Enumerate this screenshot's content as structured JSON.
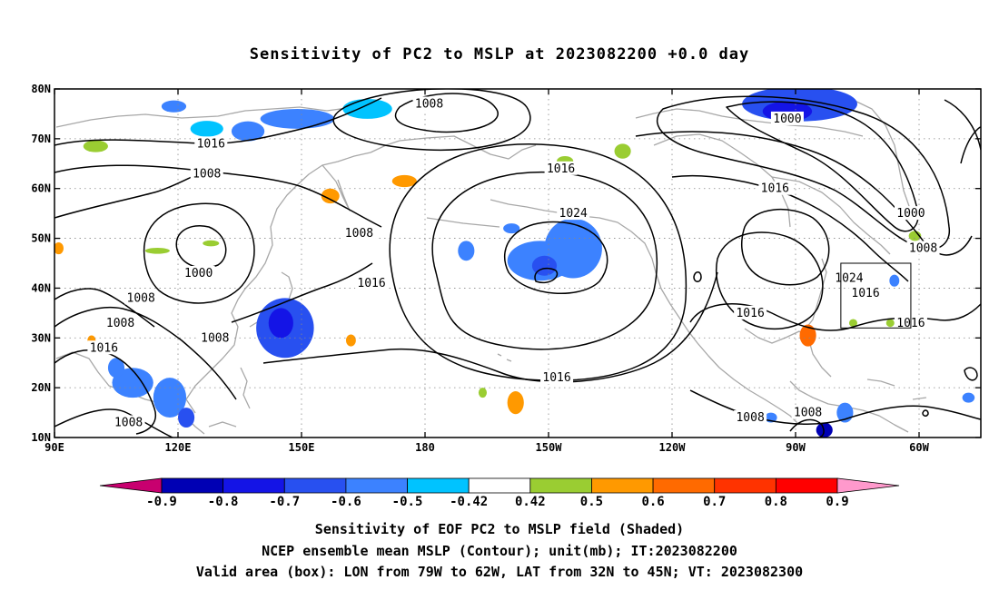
{
  "title": "Sensitivity of PC2 to MSLP at 2023082200 +0.0 day",
  "map": {
    "lon_ticks": [
      {
        "lon": 90,
        "label": "90E"
      },
      {
        "lon": 120,
        "label": "120E"
      },
      {
        "lon": 150,
        "label": "150E"
      },
      {
        "lon": 180,
        "label": "180"
      },
      {
        "lon": 210,
        "label": "150W"
      },
      {
        "lon": 240,
        "label": "120W"
      },
      {
        "lon": 270,
        "label": "90W"
      },
      {
        "lon": 300,
        "label": "60W"
      }
    ],
    "lat_ticks": [
      {
        "lat": 80,
        "label": "80N"
      },
      {
        "lat": 70,
        "label": "70N"
      },
      {
        "lat": 60,
        "label": "60N"
      },
      {
        "lat": 50,
        "label": "50N"
      },
      {
        "lat": 40,
        "label": "40N"
      },
      {
        "lat": 30,
        "label": "30N"
      },
      {
        "lat": 20,
        "label": "20N"
      },
      {
        "lat": 10,
        "label": "10N"
      }
    ],
    "lon_range": [
      90,
      315
    ],
    "lat_range": [
      10,
      80
    ],
    "grid": "dotted",
    "valid_box": {
      "lon_min": 281,
      "lon_max": 298,
      "lat_min": 32,
      "lat_max": 45
    },
    "contour_labels": [
      {
        "text": "1008",
        "lon": 181,
        "lat": 77
      },
      {
        "text": "1000",
        "lon": 268,
        "lat": 74
      },
      {
        "text": "1016",
        "lon": 128,
        "lat": 69
      },
      {
        "text": "1008",
        "lon": 127,
        "lat": 63
      },
      {
        "text": "1016",
        "lon": 213,
        "lat": 64
      },
      {
        "text": "1016",
        "lon": 265,
        "lat": 60
      },
      {
        "text": "1024",
        "lon": 216,
        "lat": 55
      },
      {
        "text": "1008",
        "lon": 164,
        "lat": 51
      },
      {
        "text": "1000",
        "lon": 298,
        "lat": 55
      },
      {
        "text": "1008",
        "lon": 301,
        "lat": 48
      },
      {
        "text": "1000",
        "lon": 125,
        "lat": 43
      },
      {
        "text": "1024",
        "lon": 283,
        "lat": 42
      },
      {
        "text": "1016",
        "lon": 167,
        "lat": 41
      },
      {
        "text": "1016",
        "lon": 287,
        "lat": 39
      },
      {
        "text": "1008",
        "lon": 111,
        "lat": 38
      },
      {
        "text": "1016",
        "lon": 259,
        "lat": 35
      },
      {
        "text": "1008",
        "lon": 106,
        "lat": 33
      },
      {
        "text": "1016",
        "lon": 298,
        "lat": 33
      },
      {
        "text": "1008",
        "lon": 129,
        "lat": 30
      },
      {
        "text": "1016",
        "lon": 102,
        "lat": 28
      },
      {
        "text": "1016",
        "lon": 212,
        "lat": 22
      },
      {
        "text": "1008",
        "lon": 108,
        "lat": 13
      },
      {
        "text": "1008",
        "lon": 259,
        "lat": 14
      },
      {
        "text": "1008",
        "lon": 273,
        "lat": 15
      }
    ],
    "sensitivity_patches": [
      {
        "lon": 146,
        "lat": 32,
        "rx": 7,
        "ry": 6,
        "value": -0.6
      },
      {
        "lon": 145,
        "lat": 33,
        "rx": 3,
        "ry": 3,
        "value": -0.7
      },
      {
        "lon": 137,
        "lat": 71.5,
        "rx": 4,
        "ry": 2,
        "value": -0.5
      },
      {
        "lon": 149,
        "lat": 74,
        "rx": 9,
        "ry": 2,
        "value": -0.5
      },
      {
        "lon": 166,
        "lat": 76,
        "rx": 6,
        "ry": 2,
        "value": -0.42
      },
      {
        "lon": 127,
        "lat": 72,
        "rx": 4,
        "ry": 1.6,
        "value": -0.42
      },
      {
        "lon": 119,
        "lat": 76.5,
        "rx": 3,
        "ry": 1.2,
        "value": -0.5
      },
      {
        "lon": 208,
        "lat": 45.5,
        "rx": 8,
        "ry": 4,
        "value": -0.5
      },
      {
        "lon": 216,
        "lat": 48,
        "rx": 7,
        "ry": 6,
        "value": -0.5
      },
      {
        "lon": 209,
        "lat": 44.5,
        "rx": 3,
        "ry": 2,
        "value": -0.6
      },
      {
        "lon": 190,
        "lat": 47.5,
        "rx": 2,
        "ry": 2,
        "value": -0.5
      },
      {
        "lon": 201,
        "lat": 52,
        "rx": 2,
        "ry": 1,
        "value": -0.5
      },
      {
        "lon": 271,
        "lat": 77,
        "rx": 14,
        "ry": 3.5,
        "value": -0.6
      },
      {
        "lon": 268,
        "lat": 75.5,
        "rx": 6,
        "ry": 2,
        "value": -0.7
      },
      {
        "lon": 109,
        "lat": 21,
        "rx": 5,
        "ry": 3,
        "value": -0.5
      },
      {
        "lon": 118,
        "lat": 18,
        "rx": 4,
        "ry": 4,
        "value": -0.5
      },
      {
        "lon": 122,
        "lat": 14,
        "rx": 2,
        "ry": 2,
        "value": -0.6
      },
      {
        "lon": 105,
        "lat": 24,
        "rx": 2,
        "ry": 2,
        "value": -0.5
      },
      {
        "lon": 294,
        "lat": 41.5,
        "rx": 1.2,
        "ry": 1.2,
        "value": -0.5
      },
      {
        "lon": 277,
        "lat": 11.5,
        "rx": 2,
        "ry": 1.5,
        "value": -0.8
      },
      {
        "lon": 282,
        "lat": 15,
        "rx": 2,
        "ry": 2,
        "value": -0.5
      },
      {
        "lon": 264,
        "lat": 14,
        "rx": 1.5,
        "ry": 1,
        "value": -0.5
      },
      {
        "lon": 312,
        "lat": 18,
        "rx": 1.5,
        "ry": 1,
        "value": -0.5
      },
      {
        "lon": 157,
        "lat": 58.5,
        "rx": 2.2,
        "ry": 1.5,
        "value": 0.6
      },
      {
        "lon": 175,
        "lat": 61.5,
        "rx": 3,
        "ry": 1.2,
        "value": 0.6
      },
      {
        "lon": 100,
        "lat": 68.5,
        "rx": 3,
        "ry": 1.2,
        "value": 0.5
      },
      {
        "lon": 91,
        "lat": 48,
        "rx": 1.2,
        "ry": 1.2,
        "value": 0.6
      },
      {
        "lon": 273,
        "lat": 30.5,
        "rx": 2,
        "ry": 2.2,
        "value": 0.7
      },
      {
        "lon": 202,
        "lat": 17,
        "rx": 2,
        "ry": 2.3,
        "value": 0.6
      },
      {
        "lon": 194,
        "lat": 19,
        "rx": 1,
        "ry": 1,
        "value": 0.5
      },
      {
        "lon": 162,
        "lat": 29.5,
        "rx": 1.2,
        "ry": 1.2,
        "value": 0.6
      },
      {
        "lon": 228,
        "lat": 67.5,
        "rx": 2,
        "ry": 1.5,
        "value": 0.5
      },
      {
        "lon": 214,
        "lat": 65.5,
        "rx": 2,
        "ry": 1,
        "value": 0.5
      },
      {
        "lon": 99,
        "lat": 29.5,
        "rx": 1,
        "ry": 1,
        "value": 0.6
      },
      {
        "lon": 299,
        "lat": 50.5,
        "rx": 1.5,
        "ry": 1,
        "value": 0.5
      },
      {
        "lon": 293,
        "lat": 33,
        "rx": 1,
        "ry": 0.8,
        "value": 0.5
      },
      {
        "lon": 284,
        "lat": 33,
        "rx": 1,
        "ry": 0.8,
        "value": 0.5
      },
      {
        "lon": 128,
        "lat": 49,
        "rx": 2,
        "ry": 0.6,
        "value": 0.5
      },
      {
        "lon": 115,
        "lat": 47.5,
        "rx": 3,
        "ry": 0.6,
        "value": 0.5
      }
    ]
  },
  "colorbar": {
    "labels": [
      "-0.9",
      "-0.8",
      "-0.7",
      "-0.6",
      "-0.5",
      "-0.42",
      "0.42",
      "0.5",
      "0.6",
      "0.7",
      "0.8",
      "0.9"
    ],
    "colors": [
      "#c8006f",
      "#0000b4",
      "#1414e6",
      "#2850f0",
      "#3c82ff",
      "#00c3ff",
      "#ffffff",
      "#9acd32",
      "#ff9900",
      "#ff6a00",
      "#ff3300",
      "#ff0000",
      "#ff99cc"
    ]
  },
  "captions": [
    "Sensitivity of EOF PC2 to MSLP field (Shaded)",
    "NCEP ensemble mean MSLP (Contour); unit(mb); IT:2023082200",
    "Valid area (box): LON from 79W to 62W, LAT from 32N to 45N; VT: 2023082300"
  ]
}
